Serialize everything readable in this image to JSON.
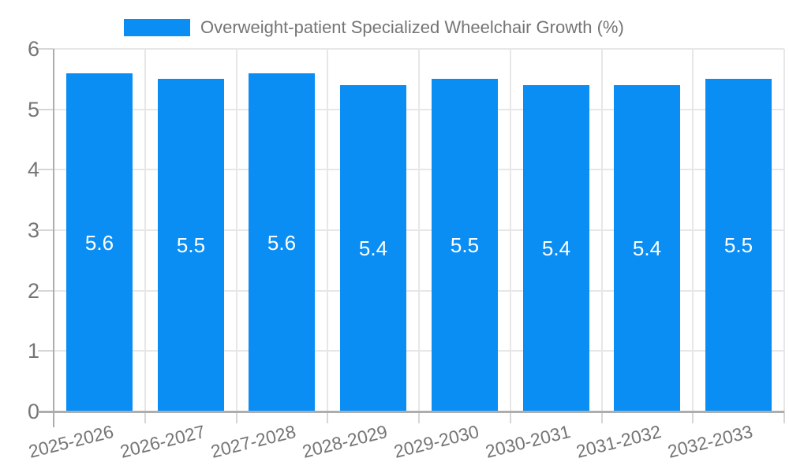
{
  "chart_data": {
    "type": "bar",
    "title": "Overweight-patient Specialized Wheelchair Growth (%)",
    "categories": [
      "2025-2026",
      "2026-2027",
      "2027-2028",
      "2028-2029",
      "2029-2030",
      "2030-2031",
      "2031-2032",
      "2032-2033"
    ],
    "values": [
      5.6,
      5.5,
      5.6,
      5.4,
      5.5,
      5.4,
      5.4,
      5.5
    ],
    "value_labels": [
      "5.6",
      "5.5",
      "5.6",
      "5.4",
      "5.5",
      "5.4",
      "5.4",
      "5.5"
    ],
    "ytick_labels": [
      "0",
      "1",
      "2",
      "3",
      "4",
      "5",
      "6"
    ],
    "yticks": [
      0,
      1,
      2,
      3,
      4,
      5,
      6
    ],
    "ylim": [
      0,
      6
    ],
    "xlabel": "",
    "ylabel": "",
    "grid": true,
    "legend_position": "top",
    "colors": {
      "bar": "#0A8EF4",
      "bar_value_text": "#FFFFFF",
      "grid": "#E7E7E7",
      "tick": "#D6D6D6",
      "axis": "#ADADAD",
      "text": "#757575"
    }
  }
}
